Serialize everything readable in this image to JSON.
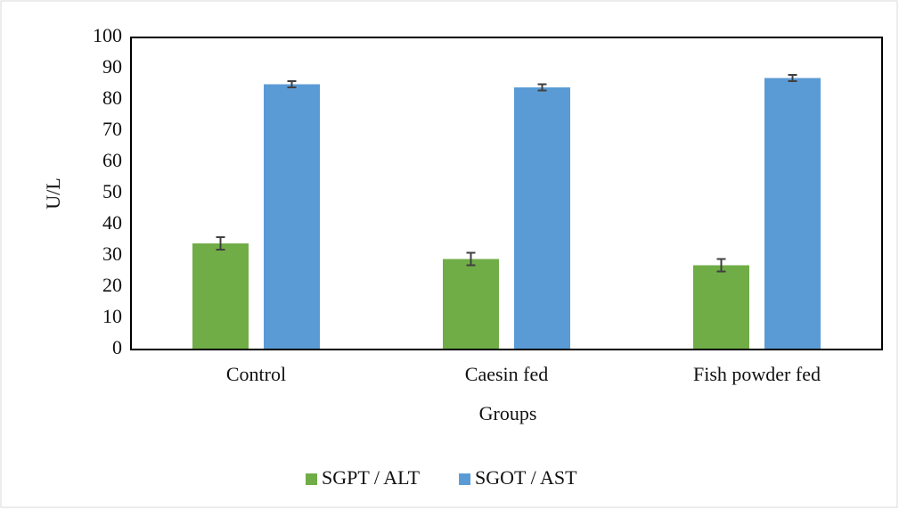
{
  "chart_data": {
    "type": "bar",
    "x_label": "Groups",
    "y_label": "U/L",
    "categories": [
      "Control",
      "Caesin fed",
      "Fish powder fed"
    ],
    "series": [
      {
        "name": "SGPT / ALT",
        "color": "#70ad47",
        "values": [
          34,
          29,
          27
        ],
        "errors": [
          2,
          2,
          2
        ]
      },
      {
        "name": "SGOT / AST",
        "color": "#5b9bd5",
        "values": [
          85,
          84,
          87
        ],
        "errors": [
          1,
          1,
          1
        ]
      }
    ],
    "ylim": [
      0,
      100
    ],
    "yticks": [
      0,
      10,
      20,
      30,
      40,
      50,
      60,
      70,
      80,
      90,
      100
    ],
    "legend": "bottom"
  }
}
